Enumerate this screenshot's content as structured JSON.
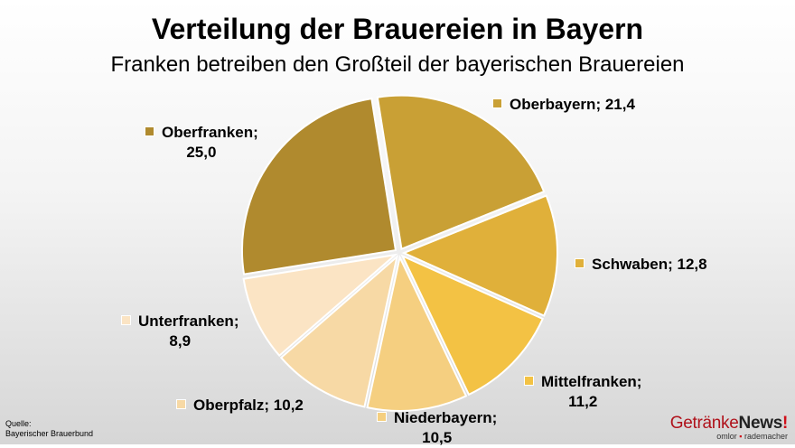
{
  "chart_data": {
    "type": "pie",
    "title": "Verteilung der Brauereien in Bayern",
    "subtitle": "Franken betreiben den Großteil der bayerischen Brauereien",
    "slices": [
      {
        "label": "Oberbayern",
        "value": 21.4,
        "display": "21,4",
        "color": "#c9a035"
      },
      {
        "label": "Schwaben",
        "value": 12.8,
        "display": "12,8",
        "color": "#e0b03a"
      },
      {
        "label": "Mittelfranken",
        "value": 11.2,
        "display": "11,2",
        "color": "#f3c244"
      },
      {
        "label": "Niederbayern",
        "value": 10.5,
        "display": "10,5",
        "color": "#f5cf80"
      },
      {
        "label": "Oberpfalz",
        "value": 10.2,
        "display": "10,2",
        "color": "#f7d9a5"
      },
      {
        "label": "Unterfranken",
        "value": 8.9,
        "display": "8,9",
        "color": "#fbe4c4"
      },
      {
        "label": "Oberfranken",
        "value": 25.0,
        "display": "25,0",
        "color": "#b08a2e"
      }
    ]
  },
  "source": {
    "line1": "Quelle:",
    "line2": "Bayerischer Brauerbund"
  },
  "logo": {
    "part1": "Getränke",
    "part2": "News",
    "mark": "!",
    "tag1": "omlor",
    "tag2": "rademacher"
  }
}
